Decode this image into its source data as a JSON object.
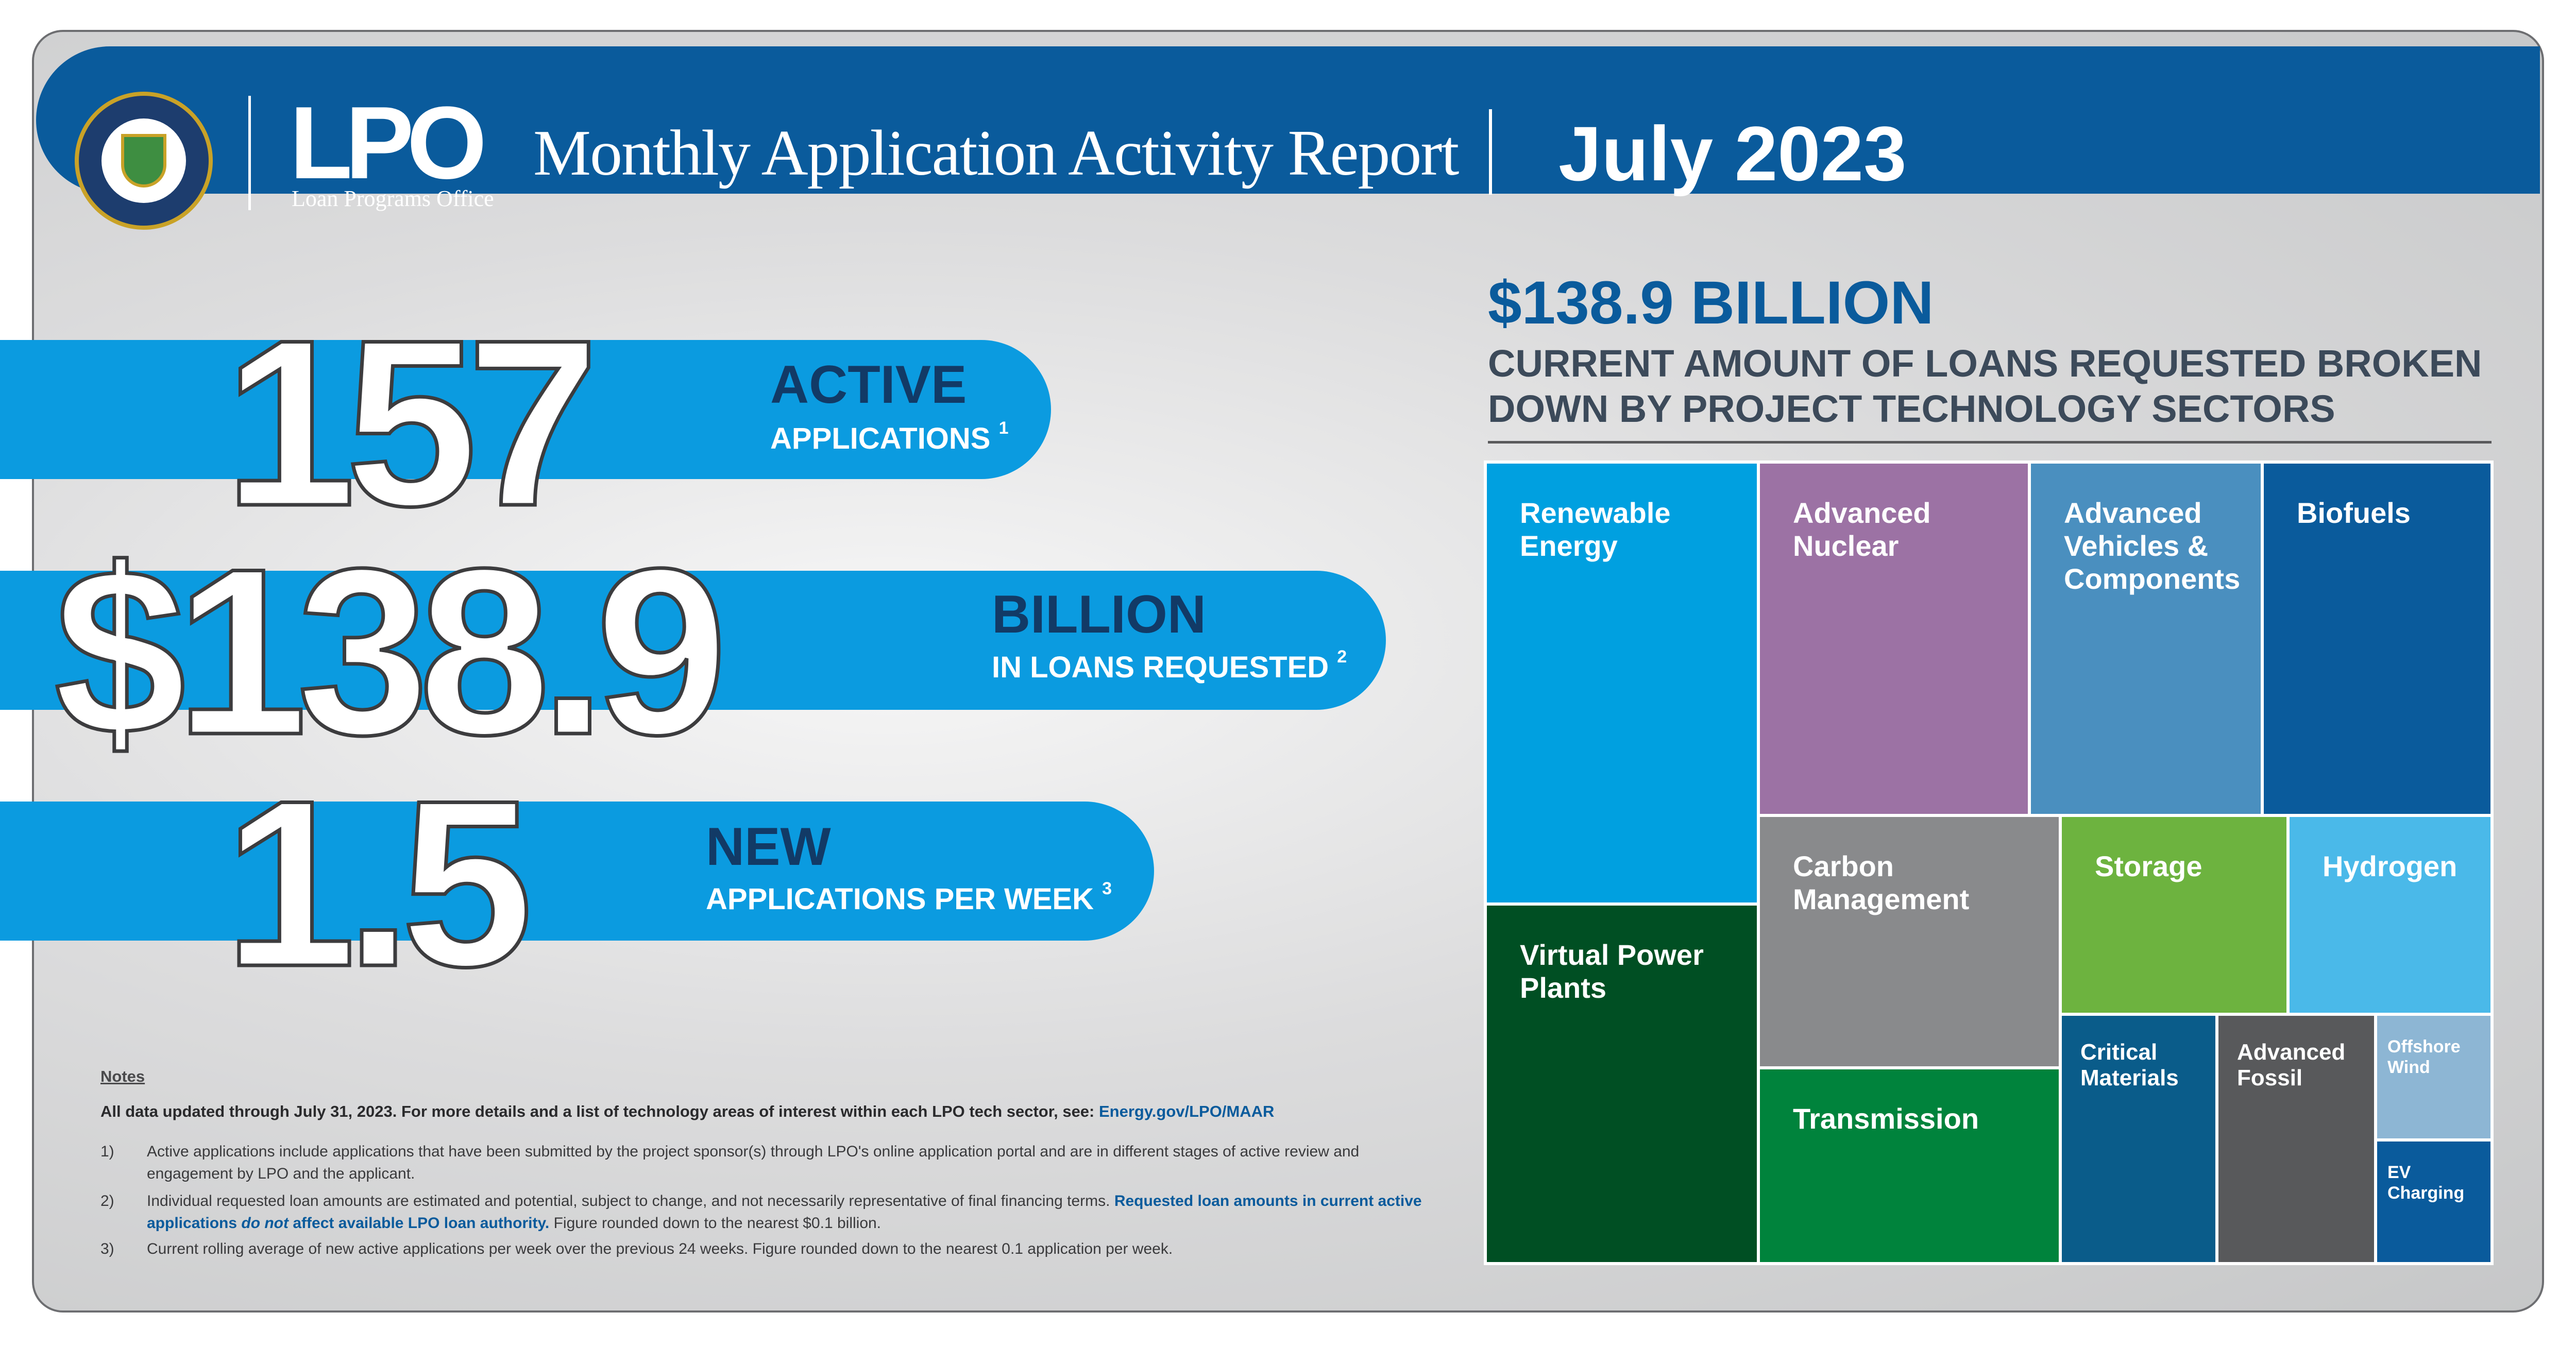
{
  "header": {
    "logo_text": "LPO",
    "logo_subtitle": "Loan Programs Office",
    "title": "Monthly Application Activity Report",
    "date": "July 2023"
  },
  "stats": [
    {
      "number": "157",
      "word": "ACTIVE",
      "sub": "APPLICATIONS",
      "note": "1"
    },
    {
      "number": "$138.9",
      "word": "BILLION",
      "sub": "IN LOANS REQUESTED",
      "note": "2"
    },
    {
      "number": "1.5",
      "word": "NEW",
      "sub": "APPLICATIONS PER WEEK",
      "note": "3"
    }
  ],
  "notes": {
    "heading": "Notes",
    "intro_dark": "All data updated through July 31, 2023. For more details and a list of technology areas of interest within each LPO tech sector, see: ",
    "intro_link": "Energy.gov/LPO/MAAR",
    "items": [
      {
        "num": "1)",
        "text": "Active applications include applications that have been submitted by the project sponsor(s) through LPO's online application portal and are in different stages of active review and engagement by LPO and the applicant."
      },
      {
        "num": "2)",
        "text_a": "Individual requested loan amounts are estimated and potential, subject to change, and not necessarily representative of final financing terms. ",
        "text_hl1": "Requested loan amounts in current active applications ",
        "text_hl_em": "do not",
        "text_hl2": " affect available LPO loan authority.",
        "text_b": " Figure rounded down to the nearest $0.1 billion."
      },
      {
        "num": "3)",
        "text": "Current rolling average of new active applications per week over the previous 24 weeks. Figure rounded down to the nearest 0.1 application per week."
      }
    ]
  },
  "treemap": {
    "amount": "$138.9 BILLION",
    "caption": "CURRENT AMOUNT OF LOANS REQUESTED BROKEN DOWN BY PROJECT TECHNOLOGY SECTORS",
    "sectors": [
      {
        "label": "Renewable Energy",
        "color": "#00a0e0"
      },
      {
        "label": "Advanced Nuclear",
        "color": "#9c72a4"
      },
      {
        "label": "Advanced Vehicles & Components",
        "color": "#4a8fbf"
      },
      {
        "label": "Biofuels",
        "color": "#0a5b9c"
      },
      {
        "label": "Virtual Power Plants",
        "color": "#004f23"
      },
      {
        "label": "Carbon Management",
        "color": "#898a8c"
      },
      {
        "label": "Storage",
        "color": "#6db33f"
      },
      {
        "label": "Hydrogen",
        "color": "#4ab9e9"
      },
      {
        "label": "Transmission",
        "color": "#00833c"
      },
      {
        "label": "Critical Materials",
        "color": "#0a5c8a"
      },
      {
        "label": "Advanced Fossil",
        "color": "#58595b"
      },
      {
        "label": "Offshore Wind",
        "color": "#8db6d4"
      },
      {
        "label": "EV Charging",
        "color": "#0a5b9c"
      }
    ]
  }
}
